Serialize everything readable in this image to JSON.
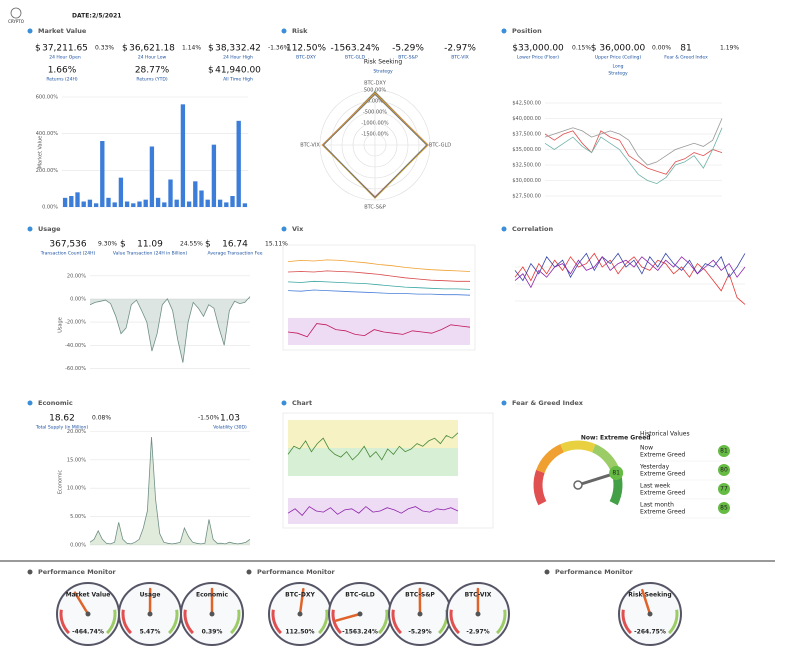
{
  "header": {
    "logo": "CRYPTO",
    "date_label": "DATE:",
    "date": "2/5/2021"
  },
  "panels": {
    "market_value": {
      "title": "Market Value",
      "stats": [
        {
          "currency": "$",
          "value": "37,211.65",
          "change": "0.33%",
          "label": "24 Hour Open"
        },
        {
          "currency": "$",
          "value": "36,621.18",
          "change": "1.14%",
          "label": "24 Hour Low"
        },
        {
          "currency": "$",
          "value": "38,332.42",
          "change": "-1.36%",
          "label": "24 Hour High"
        },
        {
          "value": "1.66%",
          "label": "Returns (24H)"
        },
        {
          "value": "28.77%",
          "label": "Returns (YTD)"
        },
        {
          "currency": "$",
          "value": "41,940.00",
          "label": "All Time High"
        }
      ]
    },
    "risk": {
      "title": "Risk",
      "stats": [
        {
          "value": "112.50%",
          "label": "BTC-DXY"
        },
        {
          "value": "-1563.24%",
          "label": "BTC-GLD"
        },
        {
          "value": "-5.29%",
          "label": "BTC-S&P"
        },
        {
          "value": "-2.97%",
          "label": "BTC-VIX"
        }
      ],
      "strategy": "Risk Seeking",
      "strategy_label": "Strategy"
    },
    "position": {
      "title": "Position",
      "stats": [
        {
          "value": "$33,000.00",
          "change": "0.15%",
          "label": "Lower Price (Floor)"
        },
        {
          "value": "$ 36,000.00",
          "change": "0.00%",
          "label": "Upper Price (Ceiling)"
        },
        {
          "value": "81",
          "change": "1.19%",
          "label": "Fear & Greed Index"
        }
      ],
      "strategy": "Long",
      "strategy_label": "Strategy"
    },
    "usage": {
      "title": "Usage",
      "stats": [
        {
          "value": "367,536",
          "change": "9.30%",
          "label": "Transaction Count (24H)"
        },
        {
          "currency": "$",
          "value": "11.09",
          "change": "24.55%",
          "label": "Value Transaction (24H in Billion)"
        },
        {
          "currency": "$",
          "value": "16.74",
          "change": "15.11%",
          "label": "Average Transaction Fee"
        }
      ]
    },
    "vix": {
      "title": "Vix"
    },
    "correlation": {
      "title": "Correlation"
    },
    "economic": {
      "title": "Economic",
      "stats": [
        {
          "value": "18.62",
          "change": "0.08%",
          "label": "Total Supply (in Million)"
        },
        {
          "value": "1.03",
          "change": "-1.50%",
          "label": "Volatility (30D)"
        }
      ]
    },
    "chart": {
      "title": "Chart"
    },
    "fear_greed": {
      "title": "Fear & Greed Index",
      "now_label": "Now:",
      "now": "Extreme Greed",
      "historical_title": "Historical Values",
      "history": [
        {
          "period": "Now",
          "status": "Extreme Greed",
          "value": 81
        },
        {
          "period": "Yesterday",
          "status": "Extreme Greed",
          "value": 80
        },
        {
          "period": "Last week",
          "status": "Extreme Greed",
          "value": 77
        },
        {
          "period": "Last month",
          "status": "Extreme Greed",
          "value": 85
        }
      ]
    }
  },
  "performance_monitor": {
    "gauge_range": [
      -2000,
      2000
    ],
    "groups": [
      {
        "title": "Performance Monitor",
        "gauges": [
          {
            "name": "Market Value",
            "value": -464.74,
            "label": "-464.74%"
          },
          {
            "name": "Usage",
            "value": 5.47,
            "label": "5.47%"
          },
          {
            "name": "Economic",
            "value": 0.39,
            "label": "0.39%"
          }
        ]
      },
      {
        "title": "Performance Monitor",
        "gauges": [
          {
            "name": "BTC-DXY",
            "value": 112.5,
            "label": "112.50%"
          },
          {
            "name": "BTC-GLD",
            "value": -1563.24,
            "label": "-1563.24%"
          },
          {
            "name": "BTC-S&P",
            "value": -5.29,
            "label": "-5.29%"
          },
          {
            "name": "BTC-VIX",
            "value": -2.97,
            "label": "-2.97%"
          }
        ]
      },
      {
        "title": "Performance Monitor",
        "gauges": [
          {
            "name": "Risk Seeking",
            "value": -264.75,
            "label": "-264.75%"
          }
        ]
      }
    ]
  },
  "chart_data": [
    {
      "type": "bar",
      "y_label": "Market Value",
      "color": "#3b7dd8",
      "grid": true,
      "ylim": [
        0,
        600
      ],
      "yticks": [
        {
          "value": 0,
          "label": "0.00%"
        },
        {
          "value": 200,
          "label": "200.00%"
        },
        {
          "value": 400,
          "label": "400.00%"
        },
        {
          "value": 600,
          "label": "600.00%"
        }
      ],
      "values": [
        50,
        60,
        80,
        30,
        40,
        20,
        360,
        50,
        25,
        160,
        30,
        20,
        30,
        40,
        330,
        50,
        25,
        150,
        40,
        560,
        30,
        140,
        90,
        40,
        340,
        40,
        25,
        60,
        470,
        20
      ]
    },
    {
      "type": "radar",
      "categories": [
        "BTC-DXY",
        "BTC-GLD",
        "BTC-S&P",
        "BTC-VIX"
      ],
      "rlim": [
        -2000,
        500
      ],
      "rticks": [
        {
          "value": 500,
          "label": "500.00%"
        },
        {
          "value": 0,
          "label": "0.00%"
        },
        {
          "value": -500,
          "label": "-500.00%"
        },
        {
          "value": -1000,
          "label": "-1000.00%"
        },
        {
          "value": -1500,
          "label": "-1500.00%"
        }
      ],
      "series": [
        {
          "color": "#2e7d32",
          "values": [
            420,
            380,
            400,
            360
          ]
        },
        {
          "color": "#e57373",
          "values": [
            380,
            420,
            350,
            400
          ]
        },
        {
          "color": "#c9a227",
          "values": [
            350,
            400,
            420,
            380
          ]
        },
        {
          "color": "#777777",
          "values": [
            300,
            350,
            380,
            340
          ]
        }
      ]
    },
    {
      "type": "line",
      "grid": true,
      "ylim": [
        27500,
        42500
      ],
      "yticks": [
        {
          "value": 27500,
          "label": "$27,500.00"
        },
        {
          "value": 30000,
          "label": "$30,000.00"
        },
        {
          "value": 32500,
          "label": "$32,500.00"
        },
        {
          "value": 35000,
          "label": "$35,000.00"
        },
        {
          "value": 37500,
          "label": "$37,500.00"
        },
        {
          "value": 40000,
          "label": "$40,000.00"
        },
        {
          "value": 42500,
          "label": "$42,500.00"
        }
      ],
      "series": [
        {
          "color": "#e05050",
          "values": [
            37500,
            36500,
            37500,
            38000,
            36000,
            34500,
            38000,
            37000,
            36500,
            34000,
            33000,
            32000,
            31500,
            31000,
            33000,
            33500,
            34500,
            34000,
            35000,
            34500
          ]
        },
        {
          "color": "#6fb3a8",
          "values": [
            36000,
            35000,
            36000,
            37000,
            35500,
            34500,
            37000,
            36000,
            35000,
            33000,
            31000,
            30000,
            29500,
            30500,
            32500,
            33000,
            34000,
            32000,
            35000,
            38500
          ]
        },
        {
          "color": "#999999",
          "values": [
            37000,
            37500,
            38000,
            38500,
            38000,
            37000,
            37500,
            38000,
            37500,
            36500,
            34000,
            32500,
            33000,
            34000,
            35000,
            35500,
            36000,
            35500,
            36500,
            40000
          ]
        }
      ]
    },
    {
      "type": "area",
      "y_label": "Usage",
      "grid": true,
      "color": "#9fb5b0",
      "ylim": [
        -70,
        25
      ],
      "yticks": [
        {
          "value": 20,
          "label": "20.00%"
        },
        {
          "value": 0,
          "label": "0.00%"
        },
        {
          "value": -20,
          "label": "-20.00%"
        },
        {
          "value": -40,
          "label": "-40.00%"
        },
        {
          "value": -60,
          "label": "-60.00%"
        }
      ],
      "values": [
        -5,
        -3,
        -2,
        -1,
        -4,
        -15,
        -30,
        -25,
        -5,
        -1,
        -10,
        -20,
        -45,
        -30,
        -5,
        0,
        -10,
        -35,
        -55,
        -20,
        -3,
        -8,
        -15,
        -5,
        -8,
        -25,
        -40,
        -10,
        -2,
        -4,
        -3,
        2
      ]
    },
    {
      "type": "line",
      "ylim": [
        0,
        100
      ],
      "series": [
        {
          "color": "#f0a030",
          "values": [
            80,
            82,
            81,
            83,
            82,
            80,
            78,
            75,
            73,
            70,
            68,
            66,
            65,
            64,
            63
          ]
        },
        {
          "color": "#d84a4a",
          "values": [
            62,
            63,
            62,
            64,
            63,
            62,
            60,
            58,
            55,
            52,
            50,
            48,
            47,
            46,
            46
          ]
        },
        {
          "color": "#3aa6a0",
          "values": [
            45,
            44,
            46,
            45,
            44,
            43,
            42,
            40,
            38,
            36,
            35,
            34,
            33,
            33,
            32
          ]
        },
        {
          "color": "#4a7fd8",
          "values": [
            30,
            29,
            31,
            30,
            29,
            28,
            27,
            26,
            25,
            25,
            24,
            24,
            23,
            23,
            22
          ]
        }
      ]
    },
    {
      "type": "line",
      "ylim": [
        0,
        100
      ],
      "series": [
        {
          "color": "#c2185b",
          "values": [
            50,
            45,
            30,
            85,
            80,
            60,
            55,
            40,
            35,
            60,
            50,
            45,
            40,
            55,
            50,
            45,
            60,
            80,
            75,
            70
          ]
        }
      ]
    },
    {
      "type": "line",
      "grid": true,
      "ylim": [
        -1,
        1
      ],
      "series": [
        {
          "color": "#e53935",
          "values": [
            0.2,
            0.5,
            0.1,
            0.6,
            0.3,
            0.7,
            0.4,
            0.8,
            0.5,
            0.6,
            0.9,
            0.5,
            0.7,
            0.3,
            0.6,
            0.8,
            0.5,
            0.4,
            0.7,
            0.6,
            0.3,
            0.5,
            0.2,
            0.6,
            0.4,
            0.1,
            -0.2,
            0.3,
            -0.4,
            -0.6
          ]
        },
        {
          "color": "#3949ab",
          "values": [
            0.4,
            0.1,
            0.6,
            0.3,
            0.8,
            0.5,
            0.7,
            0.2,
            0.6,
            0.9,
            0.4,
            0.8,
            0.6,
            0.9,
            0.5,
            0.7,
            0.3,
            0.8,
            0.5,
            0.9,
            0.6,
            0.4,
            0.7,
            0.3,
            0.6,
            0.5,
            0.8,
            0.2,
            0.5,
            0.9
          ]
        },
        {
          "color": "#8e24aa",
          "values": [
            0.1,
            0.3,
            -0.1,
            0.4,
            0.2,
            0.5,
            0.6,
            0.3,
            0.7,
            0.4,
            0.5,
            0.8,
            0.4,
            0.6,
            0.7,
            0.5,
            0.8,
            0.6,
            0.4,
            0.7,
            0.5,
            0.8,
            0.6,
            0.3,
            0.5,
            0.7,
            0.4,
            0.6,
            0.2,
            0.5
          ]
        }
      ]
    },
    {
      "type": "area",
      "y_label": "Economic",
      "grid": true,
      "color": "#a9c79a",
      "ylim": [
        0,
        22
      ],
      "yticks": [
        {
          "value": 0,
          "label": "0.00%"
        },
        {
          "value": 5,
          "label": "5.00%"
        },
        {
          "value": 10,
          "label": "10.00%"
        },
        {
          "value": 15,
          "label": "15.00%"
        },
        {
          "value": 20,
          "label": "20.00%"
        }
      ],
      "values": [
        0.5,
        1,
        2.5,
        1,
        0.3,
        0.2,
        0.5,
        4,
        1,
        0.3,
        0.2,
        0.5,
        1,
        3,
        6,
        19,
        8,
        2,
        0.5,
        0.3,
        0.2,
        0.3,
        0.5,
        3,
        1.5,
        0.5,
        0.3,
        0.2,
        0.3,
        4.5,
        1,
        0.3,
        0.3,
        0.2,
        0.5,
        0.3,
        0.2,
        0.3,
        0.5,
        1
      ]
    },
    {
      "type": "line",
      "ylim": [
        0,
        100
      ],
      "series": [
        {
          "color": "#4a8a3a",
          "values": [
            40,
            55,
            50,
            65,
            45,
            60,
            70,
            50,
            40,
            35,
            45,
            30,
            40,
            55,
            35,
            45,
            30,
            50,
            40,
            55,
            45,
            50,
            60,
            55,
            65,
            70,
            60,
            75,
            70,
            80
          ]
        }
      ]
    },
    {
      "type": "line",
      "ylim": [
        0,
        100
      ],
      "series": [
        {
          "color": "#8e24aa",
          "values": [
            40,
            60,
            30,
            70,
            50,
            45,
            65,
            35,
            55,
            60,
            40,
            70,
            45,
            50,
            65,
            55,
            40,
            60,
            70,
            50,
            45,
            60,
            55,
            65,
            50
          ]
        }
      ]
    },
    {
      "type": "gauge",
      "range": [
        0,
        100
      ],
      "value": 81
    }
  ]
}
